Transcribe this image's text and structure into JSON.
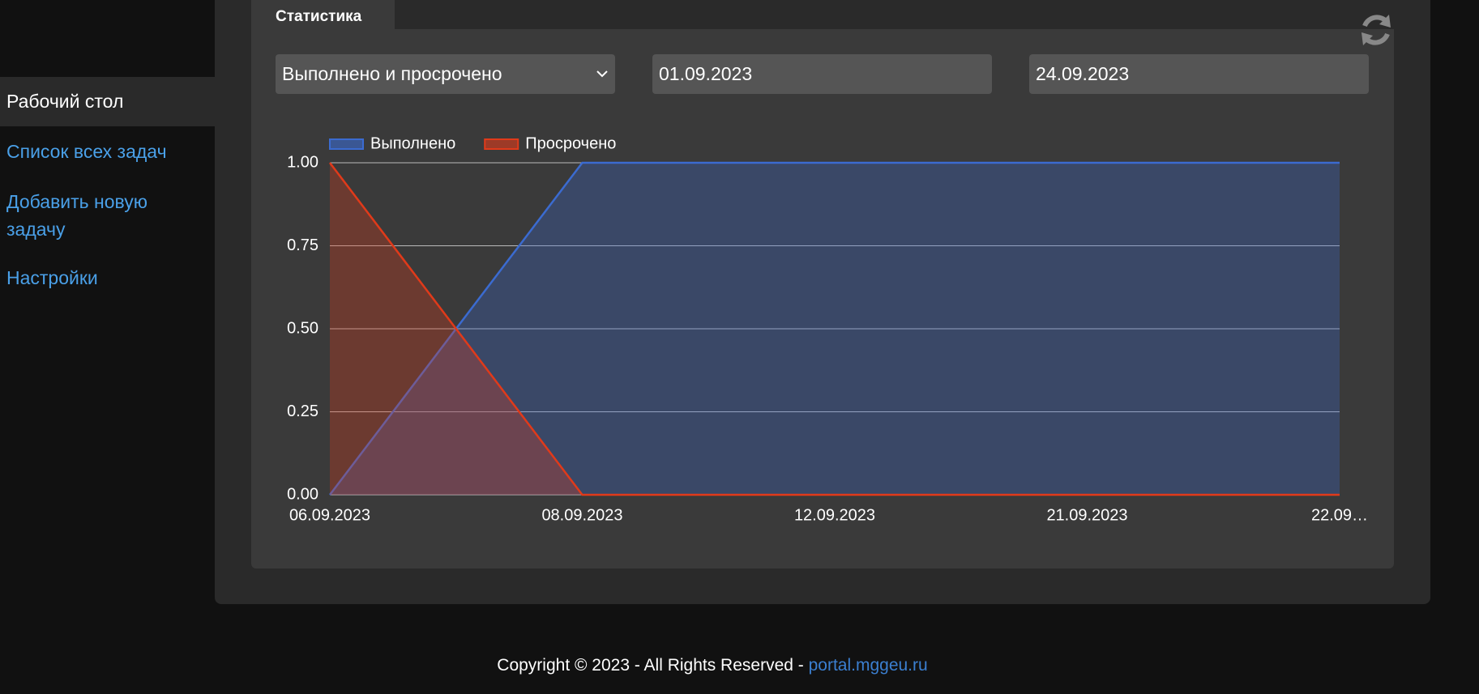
{
  "sidebar": {
    "items": [
      "Рабочий стол",
      "Список всех задач",
      "Добавить новую задачу",
      "Настройки"
    ]
  },
  "tab": "Статистика",
  "filters": {
    "mode": "Выполнено и просрочено",
    "date_from": "01.09.2023",
    "date_to": "24.09.2023"
  },
  "chart_data": {
    "type": "area",
    "categories": [
      "06.09.2023",
      "08.09.2023",
      "12.09.2023",
      "21.09.2023",
      "22.09…"
    ],
    "series": [
      {
        "name": "Выполнено",
        "color": "#3b6bd0",
        "values": [
          0,
          1,
          1,
          1,
          1
        ]
      },
      {
        "name": "Просрочено",
        "color": "#e03a1a",
        "values": [
          1,
          0,
          0,
          0,
          0
        ]
      }
    ],
    "ylim": [
      0,
      1
    ],
    "yticks": [
      {
        "value": 0,
        "label": "0.00"
      },
      {
        "value": 0.25,
        "label": "0.25"
      },
      {
        "value": 0.5,
        "label": "0.50"
      },
      {
        "value": 0.75,
        "label": "0.75"
      },
      {
        "value": 1,
        "label": "1.00"
      }
    ],
    "grid": true,
    "legend": "top-left"
  },
  "footer": {
    "text": "Copyright © 2023 - All Rights Reserved -",
    "link": "portal.mggeu.ru"
  }
}
